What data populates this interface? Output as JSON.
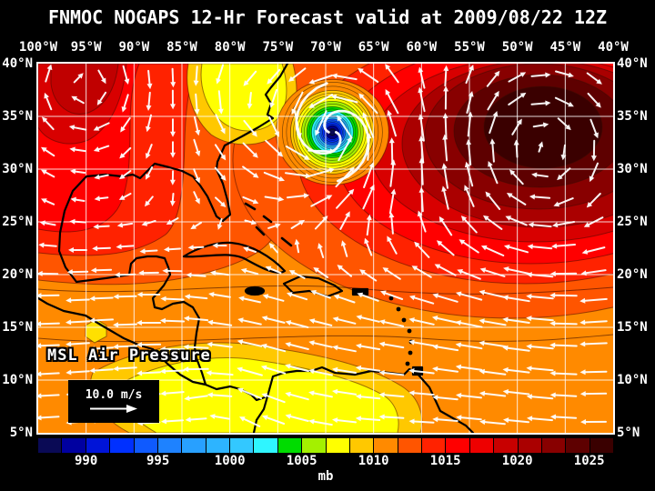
{
  "title": "FNMOC NOGAPS 12-Hr Forecast valid at 2009/08/22 12Z",
  "map": {
    "field_label": "MSL Air Pressure",
    "wind_legend_label": "10.0 m/s"
  },
  "axes": {
    "top_ticks": [
      "100°W",
      "95°W",
      "90°W",
      "85°W",
      "80°W",
      "75°W",
      "70°W",
      "65°W",
      "60°W",
      "55°W",
      "50°W",
      "45°W",
      "40°W"
    ],
    "left_ticks": [
      "40°N",
      "35°N",
      "30°N",
      "25°N",
      "20°N",
      "15°N",
      "10°N",
      "5°N"
    ],
    "right_ticks": [
      "40°N",
      "35°N",
      "30°N",
      "25°N",
      "20°N",
      "15°N",
      "10°N",
      "5°N"
    ]
  },
  "colorbar": {
    "unit_label": "mb",
    "tick_labels": [
      "990",
      "995",
      "1000",
      "1005",
      "1010",
      "1015",
      "1020",
      "1025"
    ],
    "cell_colors": [
      "#0A0A55",
      "#0000A0",
      "#0014D8",
      "#0030FF",
      "#0F5AFF",
      "#1E82FF",
      "#28A0FF",
      "#2DB4FF",
      "#33C8FF",
      "#2FF5FF",
      "#00DC00",
      "#A4F000",
      "#FFFF00",
      "#FFC800",
      "#FF8A00",
      "#FF5500",
      "#FF2200",
      "#FF0000",
      "#EE0000",
      "#C80000",
      "#AA0000",
      "#880000",
      "#5E0000",
      "#3A0000"
    ]
  },
  "chart_data": {
    "type": "heatmap",
    "title": "FNMOC NOGAPS 12-Hr Forecast valid at 2009/08/22 12Z",
    "field": "MSL Air Pressure",
    "unit": "mb",
    "lon_ticks_deg_w": [
      100,
      95,
      90,
      85,
      80,
      75,
      70,
      65,
      60,
      55,
      50,
      45,
      40
    ],
    "lat_ticks_deg_n": [
      40,
      35,
      30,
      25,
      20,
      15,
      10,
      5
    ],
    "colorbar_levels_mb": [
      990,
      995,
      1000,
      1005,
      1010,
      1015,
      1020,
      1025
    ],
    "wind_reference_m_s": 10.0,
    "grid": "on",
    "features": [
      {
        "name": "hurricane-vortex",
        "lat_deg_n": 33.5,
        "lon_deg_w": 69.3,
        "desc": "intense closed low, concentric rings down to below 990 mb, counterclockwise wind spiral"
      },
      {
        "name": "subtropical-high",
        "lat_deg_n": 33.5,
        "lon_deg_w": 47.5,
        "desc": "broad dark high above 1025 mb over the central Atlantic, clockwise winds"
      },
      {
        "name": "northwest-high-ridge",
        "lat_deg_n": 38,
        "lon_deg_w": 95,
        "desc": "dark red ridge near 1020 mb over the central US"
      },
      {
        "name": "carolinas-low",
        "lat_deg_n": 36.5,
        "lon_deg_w": 79,
        "desc": "weak yellow low near 1005-1008 mb along the mid-Atlantic coast"
      },
      {
        "name": "panama-low",
        "lat_deg_n": 8,
        "lon_deg_w": 80.5,
        "desc": "weak yellow low near 1005-1008 mb over Panama / eastern Pacific"
      },
      {
        "name": "trade-wind-easterlies",
        "desc": "westward-pointing wind vectors across 5-20N Caribbean and tropical Atlantic"
      }
    ]
  }
}
